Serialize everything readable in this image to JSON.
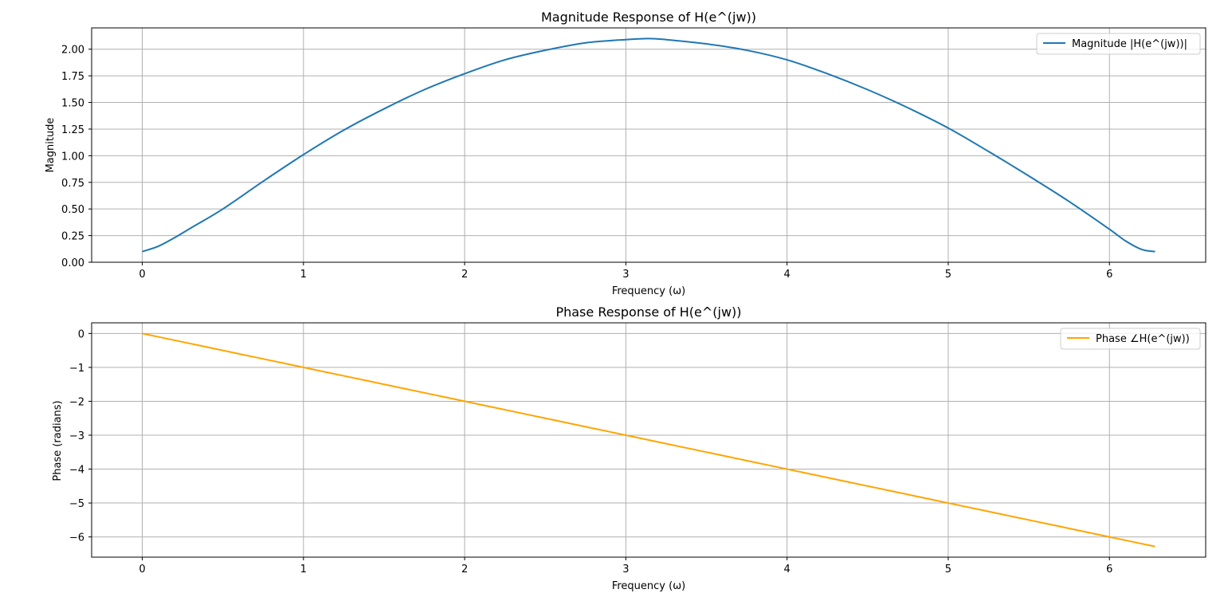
{
  "chart_data": [
    {
      "type": "line",
      "title": "Magnitude Response of H(e^(jw))",
      "xlabel": "Frequency (ω)",
      "ylabel": "Magnitude",
      "xlim": [
        -0.314,
        6.597
      ],
      "ylim": [
        0.0,
        2.2
      ],
      "xticks": [
        0,
        1,
        2,
        3,
        4,
        5,
        6
      ],
      "xtick_labels": [
        "0",
        "1",
        "2",
        "3",
        "4",
        "5",
        "6"
      ],
      "yticks": [
        0.0,
        0.25,
        0.5,
        0.75,
        1.0,
        1.25,
        1.5,
        1.75,
        2.0
      ],
      "ytick_labels": [
        "0.00",
        "0.25",
        "0.50",
        "0.75",
        "1.00",
        "1.25",
        "1.50",
        "1.75",
        "2.00"
      ],
      "grid": true,
      "legend_position": "top-right",
      "series": [
        {
          "name": "Magnitude |H(e^(jw))|",
          "color": "#1f77b4",
          "x": [
            0,
            0.1,
            0.2,
            0.3,
            0.5,
            0.75,
            1.0,
            1.25,
            1.5,
            1.75,
            2.0,
            2.25,
            2.5,
            2.75,
            3.0,
            3.14,
            3.25,
            3.5,
            3.75,
            4.0,
            4.25,
            4.5,
            4.75,
            5.0,
            5.25,
            5.5,
            5.75,
            6.0,
            6.1,
            6.2,
            6.283
          ],
          "y": [
            0.1,
            0.15,
            0.23,
            0.32,
            0.5,
            0.76,
            1.01,
            1.24,
            1.44,
            1.62,
            1.77,
            1.9,
            1.99,
            2.06,
            2.09,
            2.1,
            2.09,
            2.05,
            1.99,
            1.9,
            1.77,
            1.62,
            1.45,
            1.26,
            1.04,
            0.81,
            0.57,
            0.31,
            0.2,
            0.12,
            0.1
          ]
        }
      ]
    },
    {
      "type": "line",
      "title": "Phase Response of H(e^(jw))",
      "xlabel": "Frequency (ω)",
      "ylabel": "Phase (radians)",
      "xlim": [
        -0.314,
        6.597
      ],
      "ylim": [
        -6.597,
        0.314
      ],
      "xticks": [
        0,
        1,
        2,
        3,
        4,
        5,
        6
      ],
      "xtick_labels": [
        "0",
        "1",
        "2",
        "3",
        "4",
        "5",
        "6"
      ],
      "yticks": [
        0,
        -1,
        -2,
        -3,
        -4,
        -5,
        -6
      ],
      "ytick_labels": [
        "0",
        "−1",
        "−2",
        "−3",
        "−4",
        "−5",
        "−6"
      ],
      "grid": true,
      "legend_position": "top-right",
      "series": [
        {
          "name": "Phase ∠H(e^(jw))",
          "color": "#ffa500",
          "x": [
            0,
            6.283
          ],
          "y": [
            0,
            -6.283
          ]
        }
      ]
    }
  ]
}
